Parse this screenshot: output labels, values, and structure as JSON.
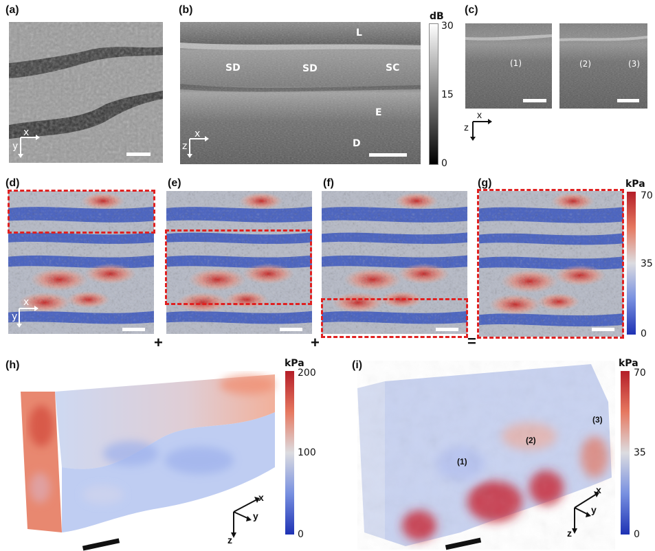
{
  "panels": {
    "a": {
      "label": "(a)",
      "axes": {
        "x": "x",
        "y": "y"
      }
    },
    "b": {
      "label": "(b)",
      "axes": {
        "x": "x",
        "z": "z"
      },
      "layers": {
        "L": "L",
        "SD1": "SD",
        "SD2": "SD",
        "SC": "SC",
        "E": "E",
        "D": "D"
      },
      "colorbar": {
        "unit": "dB",
        "max": "30",
        "mid": "15",
        "min": "0"
      }
    },
    "c": {
      "label": "(c)",
      "marks": {
        "m1": "(1)",
        "m2": "(2)",
        "m3": "(3)"
      },
      "axes": {
        "x": "x",
        "z": "z"
      }
    },
    "d": {
      "label": "(d)",
      "axes": {
        "x": "x",
        "y": "y"
      }
    },
    "e": {
      "label": "(e)"
    },
    "f": {
      "label": "(f)"
    },
    "g": {
      "label": "(g)",
      "colorbar": {
        "unit": "kPa",
        "max": "70",
        "mid": "35",
        "min": "0"
      }
    },
    "h": {
      "label": "(h)",
      "axes": {
        "x": "x",
        "y": "y",
        "z": "z"
      },
      "colorbar": {
        "unit": "kPa",
        "max": "200",
        "mid": "100",
        "min": "0"
      }
    },
    "i": {
      "label": "(i)",
      "axes": {
        "x": "x",
        "y": "y",
        "z": "z"
      },
      "marks": {
        "m1": "(1)",
        "m2": "(2)",
        "m3": "(3)"
      },
      "colorbar": {
        "unit": "kPa",
        "max": "70",
        "mid": "35",
        "min": "0"
      }
    }
  },
  "operators": {
    "plus1": "+",
    "plus2": "+",
    "equals": "="
  },
  "colors": {
    "red_dash": "#e02020",
    "stiff": "#d04040",
    "soft": "#2040c0"
  }
}
